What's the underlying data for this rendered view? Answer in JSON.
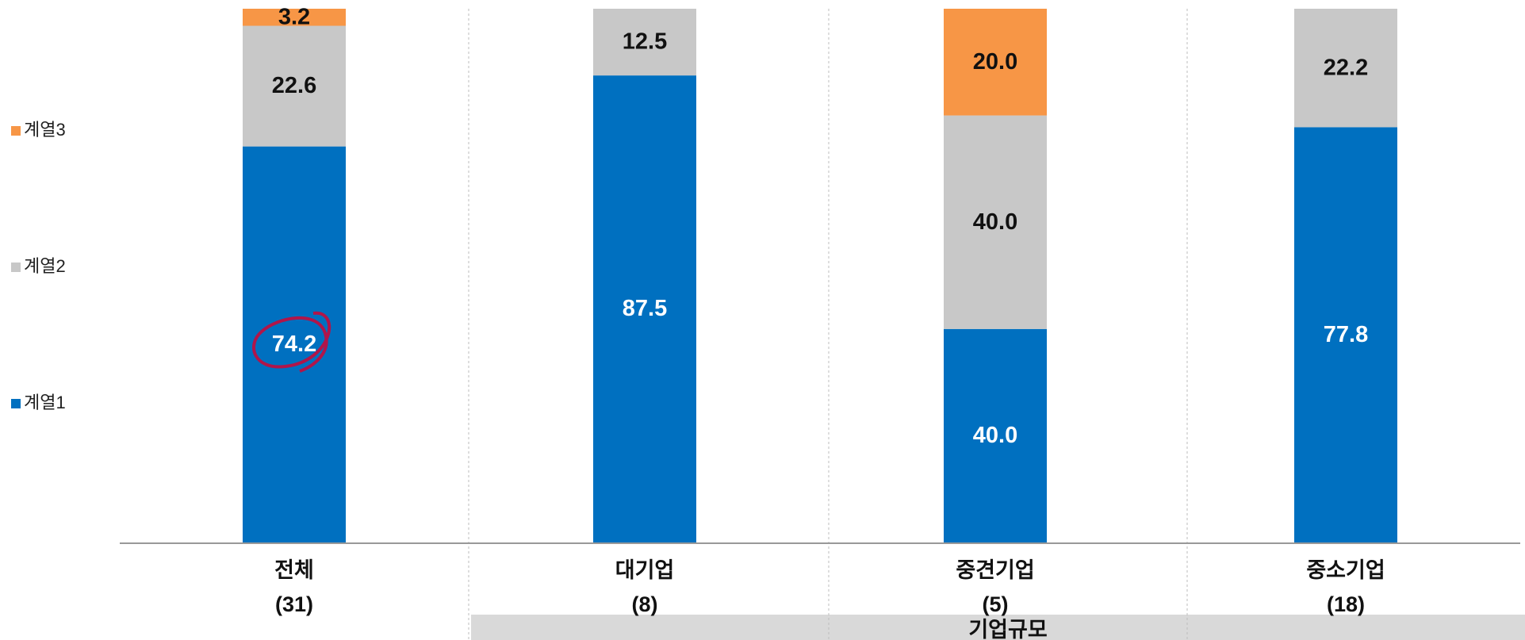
{
  "chart_data": {
    "type": "stacked_bar",
    "categories": [
      "전체\n(31)",
      "대기업\n(8)",
      "중견기업\n(5)",
      "중소기업\n(18)"
    ],
    "group_label": "기업규모",
    "ylim": [
      0,
      100
    ],
    "series": [
      {
        "name": "계열1",
        "color": "#0070c0",
        "values": [
          74.2,
          87.5,
          40.0,
          77.8
        ],
        "value_labels": [
          "74.2",
          "87.5",
          "40.0",
          "77.8"
        ]
      },
      {
        "name": "계열2",
        "color": "#c8c8c8",
        "values": [
          22.6,
          12.5,
          40.0,
          22.2
        ],
        "value_labels": [
          "22.6",
          "12.5",
          "40.0",
          "22.2"
        ]
      },
      {
        "name": "계열3",
        "color": "#f79646",
        "values": [
          3.2,
          null,
          20.0,
          null
        ],
        "value_labels": [
          "3.2",
          null,
          "20.0",
          null
        ]
      }
    ]
  }
}
